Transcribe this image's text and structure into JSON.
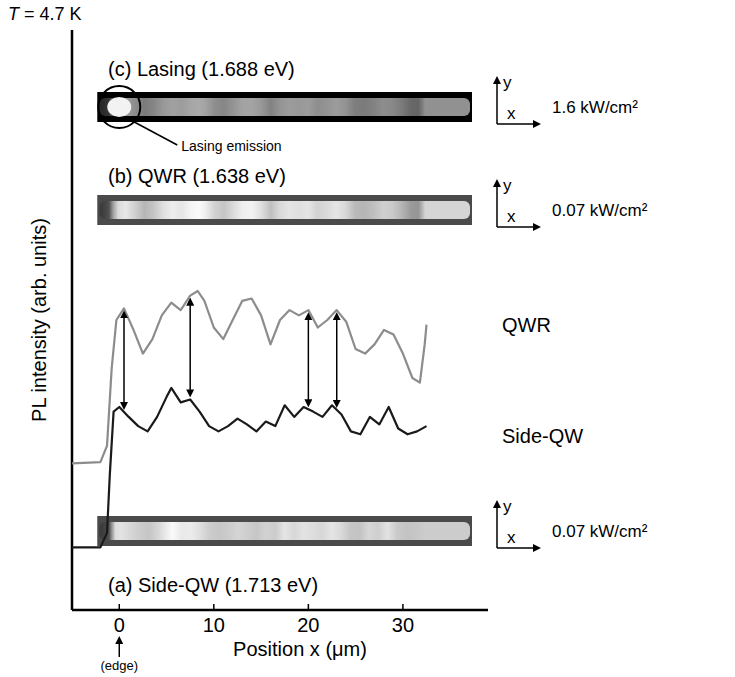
{
  "chart_data": {
    "type": "line",
    "temperature": "T = 4.7 K",
    "x_label": "Position x (μm)",
    "y_label": "PL intensity (arb. units)",
    "edge_label": "(edge)",
    "xlim": [
      -5,
      39
    ],
    "xticks": [
      0,
      10,
      20,
      30
    ],
    "ylim": [
      0,
      100
    ],
    "tick_labels": "x",
    "panels": [
      {
        "label": "(c) Lasing (1.688 eV)",
        "power": "1.6 kW/cm²"
      },
      {
        "label": "(b) QWR (1.638 eV)",
        "power": "0.07 kW/cm²"
      },
      {
        "label": "(a) Side-QW (1.713 eV)",
        "power": "0.07 kW/cm²"
      }
    ],
    "lasing_note": "Lasing emission",
    "image_axes": [
      "x",
      "y"
    ],
    "arrows": [
      0.5,
      7.5,
      20,
      23
    ],
    "series": [
      {
        "name": "QWR",
        "color": "#8c8c8c",
        "x": [
          -5,
          -2,
          -1.3,
          -0.8,
          -0.3,
          0.5,
          1.5,
          2.5,
          3.5,
          4.5,
          5.5,
          6.5,
          7.5,
          8.3,
          9,
          10,
          11,
          12,
          13,
          14,
          15,
          16,
          17,
          18,
          19,
          20,
          21,
          22,
          23,
          24,
          25,
          26,
          27,
          28,
          29,
          30,
          31,
          31.8,
          32.3,
          32.5
        ],
        "values": [
          25.3,
          25.5,
          28.3,
          41.7,
          50,
          52,
          48.3,
          44.2,
          46.7,
          50.8,
          53,
          51.7,
          54.2,
          55,
          53.3,
          48.7,
          46.7,
          50,
          53.3,
          53.7,
          50.8,
          45.8,
          50,
          51.7,
          50.8,
          51.7,
          48.7,
          50,
          51.7,
          49.7,
          45,
          44.2,
          45.8,
          48.3,
          47.5,
          44.2,
          40,
          39.2,
          45.8,
          49.2
        ]
      },
      {
        "name": "Side-QW",
        "color": "#1a1a1a",
        "x": [
          -5,
          -2,
          -1.3,
          -1,
          -0.6,
          0,
          1,
          2,
          3,
          4,
          5,
          5.5,
          6.5,
          7.5,
          8.5,
          9.5,
          10.5,
          11.5,
          12.5,
          13.5,
          14.5,
          15.5,
          16.5,
          17.5,
          18.5,
          19.5,
          20.5,
          21.5,
          22.5,
          23.5,
          24.5,
          25.5,
          26.5,
          27.5,
          28.5,
          29.5,
          30.5,
          31.5,
          32.5
        ],
        "values": [
          10.8,
          10.8,
          13.3,
          23.3,
          34.2,
          35,
          33.3,
          31.7,
          30.8,
          33.3,
          36.7,
          38.3,
          35.8,
          36.3,
          34.2,
          31.7,
          30.8,
          31.7,
          33,
          32,
          30.8,
          32.5,
          31.7,
          35.3,
          33.3,
          35,
          34.2,
          33.3,
          35.3,
          33.7,
          30.8,
          30.3,
          33.3,
          32,
          35,
          31.3,
          30.3,
          30.8,
          31.7
        ]
      }
    ]
  }
}
